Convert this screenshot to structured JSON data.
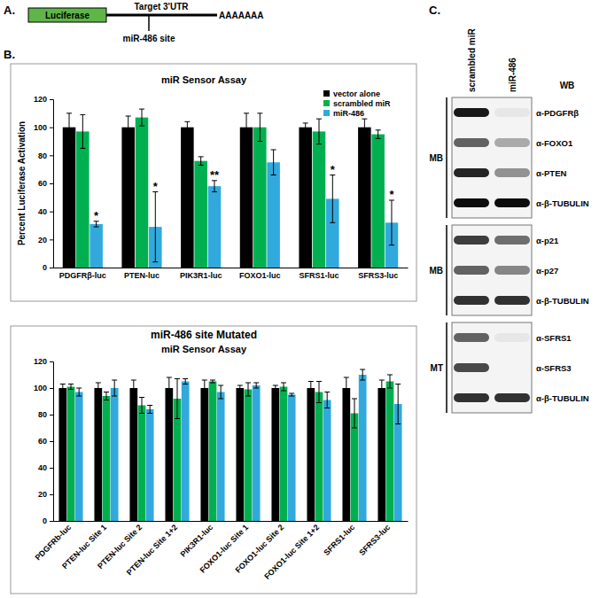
{
  "panel_labels": [
    "A.",
    "B.",
    "C."
  ],
  "diagram": {
    "box_label": "Luciferase",
    "utr_label": "Target 3'UTR",
    "site_label": "miR-486 site",
    "poly_a": "AAAAAAA"
  },
  "chart_data": [
    {
      "type": "bar",
      "title": "miR Sensor Assay",
      "y_label": "Percent Luciferase Activation",
      "categories": [
        "PDGFRβ-luc",
        "PTEN-luc",
        "PIK3R1-luc",
        "FOXO1-luc",
        "SFRS1-luc",
        "SFRS3-luc"
      ],
      "series": [
        {
          "name": "vector alone",
          "color": "#000000",
          "values": [
            100,
            100,
            100,
            100,
            100,
            100
          ],
          "errors": [
            10,
            8,
            4,
            10,
            3,
            6
          ]
        },
        {
          "name": "scrambled miR",
          "color": "#00b050",
          "values": [
            97,
            107,
            76,
            100,
            97,
            95
          ],
          "errors": [
            12,
            6,
            3,
            10,
            9,
            3
          ]
        },
        {
          "name": "miR-486",
          "color": "#31a9dd",
          "values": [
            31,
            29,
            58,
            75,
            49,
            32
          ],
          "errors": [
            2,
            25,
            4,
            9,
            17,
            16
          ]
        }
      ],
      "significance": [
        "*",
        "*",
        "**",
        null,
        "*",
        "*"
      ],
      "ylim": [
        0,
        120
      ],
      "yticks": [
        0,
        20,
        40,
        60,
        80,
        100,
        120
      ],
      "legend": "upper right"
    },
    {
      "type": "bar",
      "header": "miR-486 site Mutated",
      "title": "miR Sensor Assay",
      "categories": [
        "PDGFRb-luc",
        "PTEN-luc Site 1",
        "PTEN-luc Site 2",
        "PTEN-luc Site 1+2",
        "PIK3R1-luc",
        "FOXO1-luc Site 1",
        "FOXO1-luc Site 2",
        "FOXO1-luc Site 1+2",
        "SFRS1-luc",
        "SFRS3-luc"
      ],
      "series": [
        {
          "color": "#000000",
          "values": [
            100,
            100,
            100,
            100,
            100,
            100,
            100,
            100,
            100,
            100
          ],
          "errors": [
            3,
            4,
            6,
            8,
            6,
            2,
            2,
            5,
            8,
            6
          ]
        },
        {
          "color": "#00b050",
          "values": [
            101,
            94,
            87,
            92,
            105,
            99,
            101,
            97,
            81,
            105
          ],
          "errors": [
            2,
            3,
            6,
            15,
            1,
            5,
            3,
            8,
            11,
            5
          ]
        },
        {
          "color": "#31a9dd",
          "values": [
            97,
            100,
            84,
            105,
            97,
            102,
            95,
            91,
            110,
            88
          ],
          "errors": [
            3,
            6,
            3,
            2,
            5,
            2,
            1,
            6,
            4,
            15
          ]
        }
      ],
      "ylim": [
        0,
        120
      ],
      "yticks": [
        0,
        20,
        40,
        60,
        80,
        100,
        120
      ]
    }
  ],
  "western_blot": {
    "columns": [
      "scrambled miR",
      "miR-486"
    ],
    "method": "WB",
    "groups": [
      {
        "label": "MB",
        "rows": [
          {
            "antibody": "α-PDGFRβ",
            "intensity": [
              0.9,
              0.05
            ]
          },
          {
            "antibody": "α-FOXO1",
            "intensity": [
              0.6,
              0.3
            ]
          },
          {
            "antibody": "α-PTEN",
            "intensity": [
              0.85,
              0.4
            ]
          },
          {
            "antibody": "α-β-TUBULIN",
            "intensity": [
              0.95,
              0.95
            ]
          }
        ]
      },
      {
        "label": "MB",
        "rows": [
          {
            "antibody": "α-p21",
            "intensity": [
              0.75,
              0.55
            ]
          },
          {
            "antibody": "α-p27",
            "intensity": [
              0.6,
              0.45
            ]
          },
          {
            "antibody": "α-β-TUBULIN",
            "intensity": [
              0.8,
              0.8
            ]
          }
        ]
      },
      {
        "label": "MT",
        "rows": [
          {
            "antibody": "α-SFRS1",
            "intensity": [
              0.6,
              0.05
            ]
          },
          {
            "antibody": "α-SFRS3",
            "intensity": [
              0.7,
              0.0
            ]
          },
          {
            "antibody": "α-β-TUBULIN",
            "intensity": [
              0.8,
              0.8
            ]
          }
        ]
      }
    ]
  }
}
